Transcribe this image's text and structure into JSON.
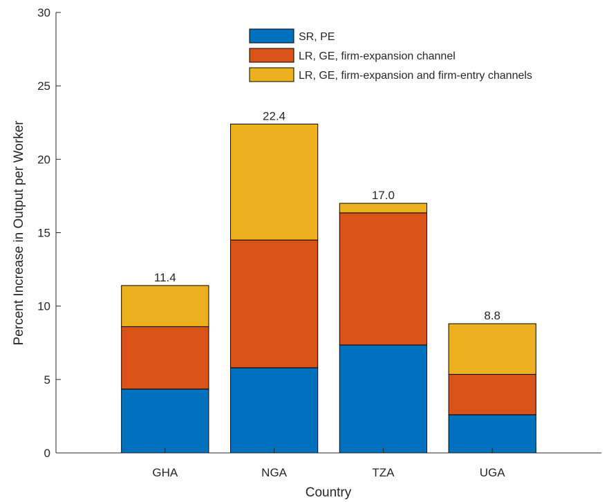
{
  "chart_data": {
    "type": "bar",
    "stacked": true,
    "xlabel": "Country",
    "ylabel": "Percent Increase in Output per Worker",
    "ylim": [
      0,
      30
    ],
    "yticks": [
      0,
      5,
      10,
      15,
      20,
      25,
      30
    ],
    "xlim": [
      0,
      5
    ],
    "categories": [
      "GHA",
      "NGA",
      "TZA",
      "UGA"
    ],
    "series": [
      {
        "name": "SR, PE",
        "color": "#0072BD",
        "values": [
          4.35,
          5.8,
          7.35,
          2.6
        ]
      },
      {
        "name": "LR, GE, firm-expansion channel",
        "color": "#D95319",
        "values": [
          4.25,
          8.7,
          9.0,
          2.75
        ]
      },
      {
        "name": "LR, GE, firm-expansion and firm-entry channels",
        "color": "#EDB120",
        "values": [
          2.8,
          7.9,
          0.65,
          3.45
        ]
      }
    ],
    "totals": [
      11.4,
      22.4,
      17.0,
      8.8
    ],
    "total_labels": [
      "11.4",
      "22.4",
      "17.0",
      "8.8"
    ],
    "legend_position": "top-center",
    "grid": false
  }
}
